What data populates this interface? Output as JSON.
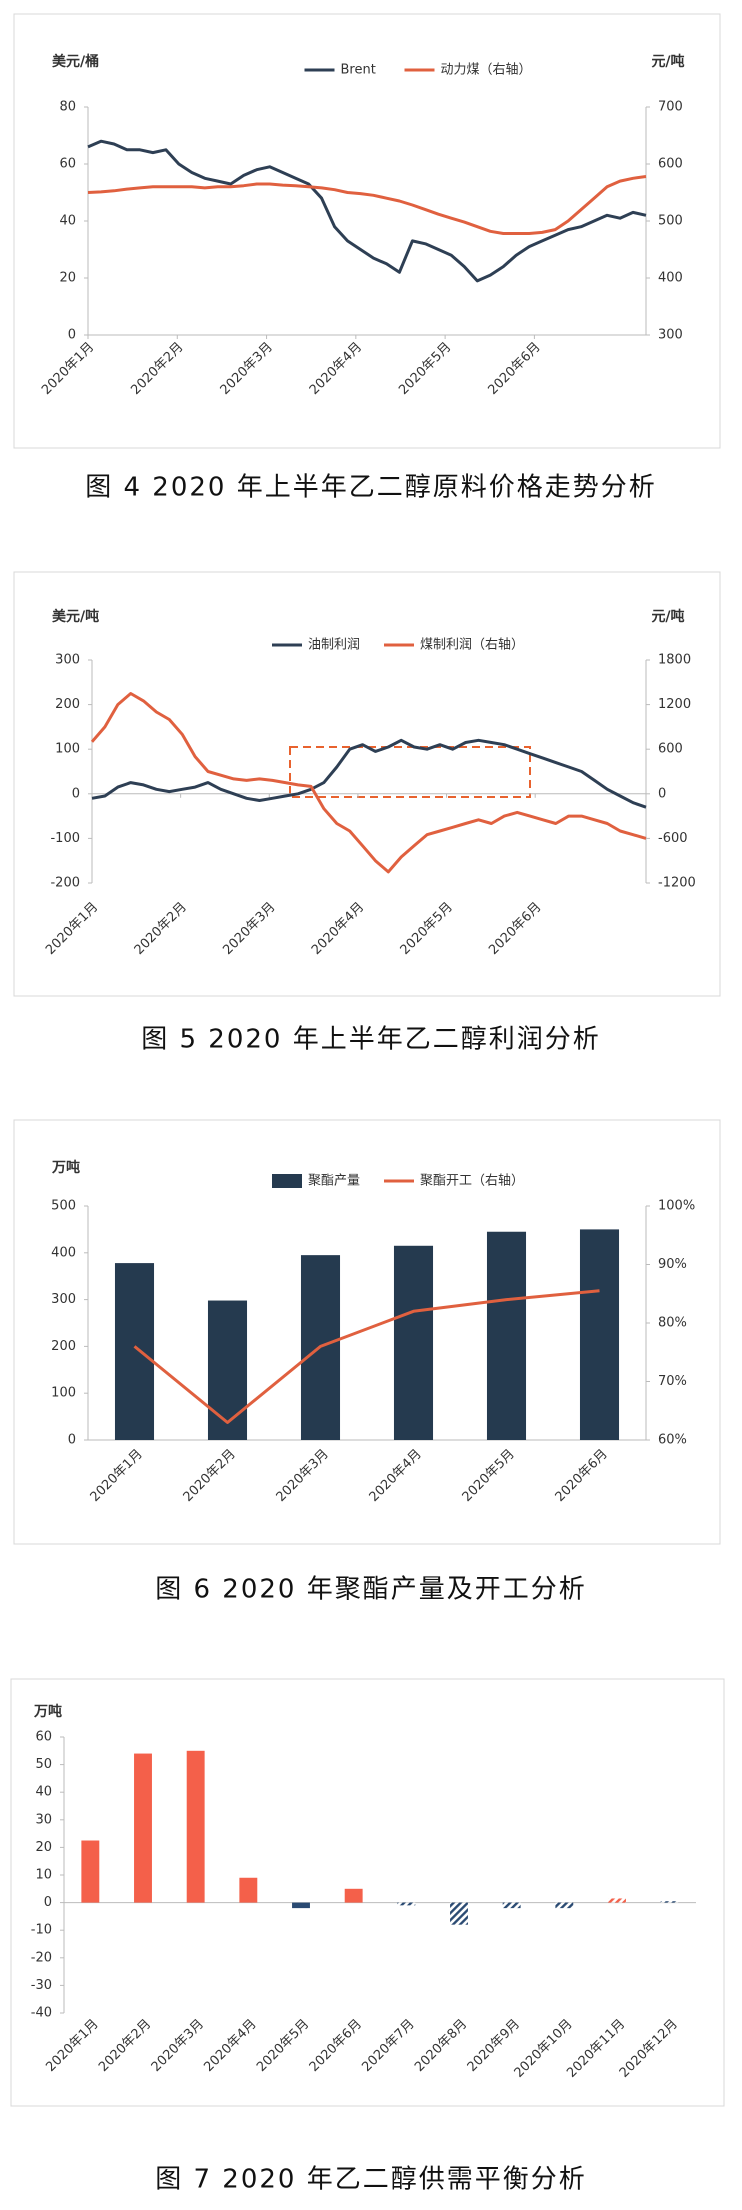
{
  "chart_data": [
    {
      "type": "line",
      "caption": "图 4  2020 年上半年乙二醇原料价格走势分析",
      "ylabel": "美元/桶",
      "y2label": "元/吨",
      "xticks": [
        "2020年1月",
        "2020年2月",
        "2020年3月",
        "2020年4月",
        "2020年5月",
        "2020年6月"
      ],
      "ylim": [
        0,
        80
      ],
      "yticks": [
        0,
        20,
        40,
        60,
        80
      ],
      "y2lim": [
        300,
        700
      ],
      "y2ticks": [
        300,
        400,
        500,
        600,
        700
      ],
      "series": [
        {
          "name": "Brent",
          "color": "#2e3f54",
          "values": [
            66,
            68,
            67,
            65,
            65,
            64,
            65,
            60,
            57,
            55,
            54,
            53,
            56,
            58,
            59,
            57,
            55,
            53,
            48,
            38,
            33,
            30,
            27,
            25,
            22,
            33,
            32,
            30,
            28,
            24,
            19,
            21,
            24,
            28,
            31,
            33,
            35,
            37,
            38,
            40,
            42,
            41,
            43,
            42
          ]
        },
        {
          "name": "动力煤（右轴）",
          "color": "#e0603f",
          "axis": "y2",
          "values": [
            550,
            551,
            553,
            556,
            558,
            560,
            560,
            560,
            560,
            558,
            560,
            560,
            562,
            565,
            565,
            563,
            562,
            560,
            558,
            555,
            550,
            548,
            545,
            540,
            535,
            528,
            520,
            512,
            505,
            498,
            490,
            482,
            478,
            478,
            478,
            480,
            485,
            500,
            520,
            540,
            560,
            570,
            575,
            578
          ]
        }
      ]
    },
    {
      "type": "line",
      "caption": "图 5  2020 年上半年乙二醇利润分析",
      "ylabel": "美元/吨",
      "y2label": "元/吨",
      "xticks": [
        "2020年1月",
        "2020年2月",
        "2020年3月",
        "2020年4月",
        "2020年5月",
        "2020年6月"
      ],
      "ylim": [
        -200,
        300
      ],
      "yticks": [
        -200,
        -100,
        0,
        100,
        200,
        300
      ],
      "y2lim": [
        -1200,
        1800
      ],
      "y2ticks": [
        -1200,
        -600,
        0,
        600,
        1200,
        1800
      ],
      "series": [
        {
          "name": "油制利润",
          "color": "#2e3f54",
          "values": [
            -10,
            -5,
            15,
            25,
            20,
            10,
            5,
            10,
            15,
            25,
            10,
            0,
            -10,
            -15,
            -10,
            -5,
            0,
            10,
            25,
            60,
            100,
            110,
            95,
            105,
            120,
            105,
            100,
            110,
            100,
            115,
            120,
            115,
            110,
            100,
            90,
            80,
            70,
            60,
            50,
            30,
            10,
            -5,
            -20,
            -30
          ]
        },
        {
          "name": "煤制利润（右轴）",
          "color": "#e0603f",
          "axis": "y2",
          "values": [
            700,
            900,
            1200,
            1350,
            1250,
            1100,
            1000,
            800,
            500,
            300,
            250,
            200,
            180,
            200,
            180,
            150,
            120,
            100,
            -200,
            -400,
            -500,
            -700,
            -900,
            -1050,
            -850,
            -700,
            -550,
            -500,
            -450,
            -400,
            -350,
            -400,
            -300,
            -250,
            -300,
            -350,
            -400,
            -300,
            -300,
            -350,
            -400,
            -500,
            -550,
            -600
          ]
        }
      ]
    },
    {
      "type": "bar",
      "caption": "图 6  2020 年聚酯产量及开工分析",
      "ylabel": "万吨",
      "categories": [
        "2020年1月",
        "2020年2月",
        "2020年3月",
        "2020年4月",
        "2020年5月",
        "2020年6月"
      ],
      "ylim": [
        0,
        500
      ],
      "yticks": [
        0,
        100,
        200,
        300,
        400,
        500
      ],
      "y2lim": [
        60,
        100
      ],
      "y2ticks": [
        {
          "value": 60,
          "label": "60%"
        },
        {
          "value": 70,
          "label": "70%"
        },
        {
          "value": 80,
          "label": "80%"
        },
        {
          "value": 90,
          "label": "90%"
        },
        {
          "value": 100,
          "label": "100%"
        }
      ],
      "series": [
        {
          "name": "聚酯产量",
          "color": "#253a4f",
          "kind": "bar",
          "values": [
            378,
            298,
            395,
            415,
            445,
            450
          ]
        },
        {
          "name": "聚酯开工（右轴）",
          "color": "#e0603f",
          "kind": "line",
          "axis": "y2",
          "values": [
            76,
            63,
            76,
            82,
            84,
            85.5
          ]
        }
      ]
    },
    {
      "type": "bar",
      "caption": "图 7  2020 年乙二醇供需平衡分析",
      "ylabel": "万吨",
      "categories": [
        "2020年1月",
        "2020年2月",
        "2020年3月",
        "2020年4月",
        "2020年5月",
        "2020年6月",
        "2020年7月",
        "2020年8月",
        "2020年9月",
        "2020年10月",
        "2020年11月",
        "2020年12月"
      ],
      "ylim": [
        -40,
        60
      ],
      "yticks": [
        -40,
        -30,
        -20,
        -10,
        0,
        10,
        20,
        30,
        40,
        50,
        60
      ],
      "values": [
        22.5,
        54,
        55,
        9,
        -2,
        5,
        -1,
        -8,
        -2,
        -2,
        1.5,
        0.5
      ],
      "colors": [
        "#f4604a",
        "#f4604a",
        "#f4604a",
        "#f4604a",
        "#2a4a72",
        "#f4604a",
        "#2a4a72",
        "#2a4a72",
        "#2a4a72",
        "#2a4a72",
        "#f4604a",
        "#2a4a72"
      ],
      "hatched": [
        false,
        false,
        false,
        false,
        false,
        false,
        true,
        true,
        true,
        true,
        true,
        true
      ]
    }
  ]
}
